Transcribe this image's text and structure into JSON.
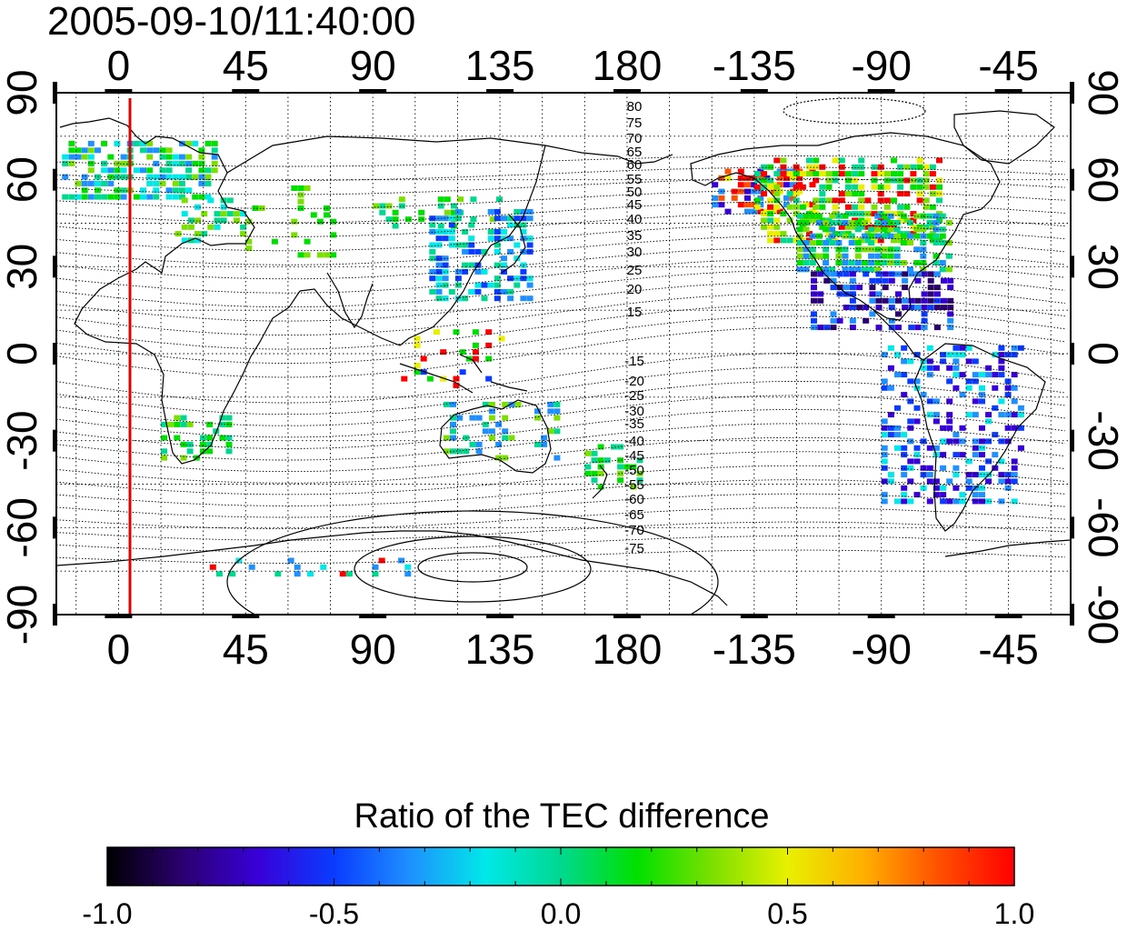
{
  "timestamp": "2005-09-10/11:40:00",
  "x_tick_labels": [
    "0",
    "45",
    "90",
    "135",
    "180",
    "-135",
    "-90",
    "-45"
  ],
  "y_tick_labels": [
    "90",
    "60",
    "30",
    "0",
    "-30",
    "-60",
    "-90"
  ],
  "magnetic_latitude_labels": [
    "80",
    "75",
    "70",
    "65",
    "60",
    "55",
    "50",
    "45",
    "40",
    "35",
    "30",
    "25",
    "20",
    "15",
    "-15",
    "-20",
    "-25",
    "-30",
    "-35",
    "-40",
    "-45",
    "-50",
    "-55",
    "-60",
    "-65",
    "-70",
    "-75"
  ],
  "colorbar": {
    "title": "Ratio of the TEC difference",
    "tick_labels": [
      "-1.0",
      "-0.5",
      "0.0",
      "0.5",
      "1.0"
    ],
    "range": [
      -1.0,
      1.0
    ],
    "colors": [
      "#000000",
      "#2b0070",
      "#3800d8",
      "#0a3cff",
      "#1e90ff",
      "#00e8e8",
      "#00d890",
      "#00e000",
      "#7be000",
      "#e8f000",
      "#ffb000",
      "#ff5000",
      "#ff0000"
    ]
  },
  "map": {
    "projection": "equirectangular",
    "lon_range": [
      -22,
      337
    ],
    "lat_range": [
      -90,
      90
    ],
    "grid": "dotted, every 15 degrees",
    "terminator_longitude": 6
  },
  "colors": {
    "terminator_line": "#e00000",
    "coastline": "#000000"
  }
}
